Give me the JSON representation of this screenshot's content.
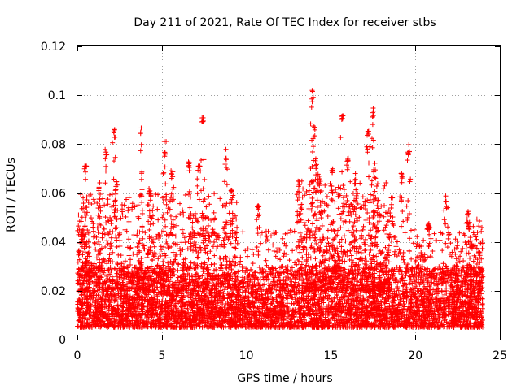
{
  "chart_data": {
    "type": "scatter",
    "title": "Day 211 of 2021, Rate Of TEC Index for receiver stbs",
    "xlabel": "GPS time / hours",
    "ylabel": "ROTI / TECUs",
    "xlim": [
      0,
      25
    ],
    "ylim": [
      0,
      0.12
    ],
    "xticks": [
      "0",
      "5",
      "10",
      "15",
      "20",
      "25"
    ],
    "yticks": [
      "0",
      "0.02",
      "0.04",
      "0.06",
      "0.08",
      "0.1",
      "0.12"
    ],
    "grid": true,
    "marker": "plus",
    "color": "#ff0000",
    "series": [
      {
        "name": "stbs",
        "bands": [
          {
            "x": [
              0.0,
              24.0
            ],
            "y": [
              0.005,
              0.03
            ],
            "count": 4200
          },
          {
            "x": [
              0.0,
              24.0
            ],
            "y": [
              0.01,
              0.045
            ],
            "count": 1800
          },
          {
            "x": [
              0.0,
              9.5
            ],
            "y": [
              0.02,
              0.06
            ],
            "count": 500
          },
          {
            "x": [
              13.0,
              18.5
            ],
            "y": [
              0.02,
              0.065
            ],
            "count": 500
          },
          {
            "x": [
              23.0,
              24.0
            ],
            "y": [
              0.02,
              0.05
            ],
            "count": 80
          }
        ],
        "clusters": [
          {
            "x": 0.3,
            "y": [
              0.04,
              0.056
            ]
          },
          {
            "x": 0.5,
            "y": [
              0.071,
              0.071
            ]
          },
          {
            "x": 1.3,
            "y": [
              0.056,
              0.066
            ]
          },
          {
            "x": 1.7,
            "y": [
              0.073,
              0.078
            ]
          },
          {
            "x": 2.2,
            "y": [
              0.081,
              0.087
            ]
          },
          {
            "x": 2.3,
            "y": [
              0.06,
              0.067
            ]
          },
          {
            "x": 3.8,
            "y": [
              0.076,
              0.087
            ]
          },
          {
            "x": 4.3,
            "y": [
              0.059,
              0.062
            ]
          },
          {
            "x": 5.2,
            "y": [
              0.073,
              0.082
            ]
          },
          {
            "x": 5.6,
            "y": [
              0.065,
              0.07
            ]
          },
          {
            "x": 6.6,
            "y": [
              0.07,
              0.073
            ]
          },
          {
            "x": 7.2,
            "y": [
              0.071,
              0.071
            ]
          },
          {
            "x": 7.4,
            "y": [
              0.089,
              0.091
            ]
          },
          {
            "x": 8.8,
            "y": [
              0.07,
              0.078
            ]
          },
          {
            "x": 9.1,
            "y": [
              0.06,
              0.063
            ]
          },
          {
            "x": 10.7,
            "y": [
              0.054,
              0.055
            ]
          },
          {
            "x": 13.1,
            "y": [
              0.06,
              0.065
            ]
          },
          {
            "x": 13.9,
            "y": [
              0.093,
              0.104
            ]
          },
          {
            "x": 14.0,
            "y": [
              0.081,
              0.088
            ]
          },
          {
            "x": 14.1,
            "y": [
              0.07,
              0.075
            ]
          },
          {
            "x": 14.3,
            "y": [
              0.063,
              0.068
            ]
          },
          {
            "x": 15.1,
            "y": [
              0.067,
              0.07
            ]
          },
          {
            "x": 15.7,
            "y": [
              0.09,
              0.092
            ]
          },
          {
            "x": 16.0,
            "y": [
              0.072,
              0.077
            ]
          },
          {
            "x": 16.4,
            "y": [
              0.063,
              0.068
            ]
          },
          {
            "x": 17.2,
            "y": [
              0.082,
              0.086
            ]
          },
          {
            "x": 17.5,
            "y": [
              0.091,
              0.096
            ]
          },
          {
            "x": 17.6,
            "y": [
              0.065,
              0.071
            ]
          },
          {
            "x": 18.6,
            "y": [
              0.058,
              0.058
            ]
          },
          {
            "x": 19.2,
            "y": [
              0.065,
              0.069
            ]
          },
          {
            "x": 19.6,
            "y": [
              0.075,
              0.08
            ]
          },
          {
            "x": 20.8,
            "y": [
              0.046,
              0.048
            ]
          },
          {
            "x": 21.8,
            "y": [
              0.054,
              0.059
            ]
          },
          {
            "x": 23.1,
            "y": [
              0.048,
              0.053
            ]
          }
        ]
      }
    ]
  }
}
